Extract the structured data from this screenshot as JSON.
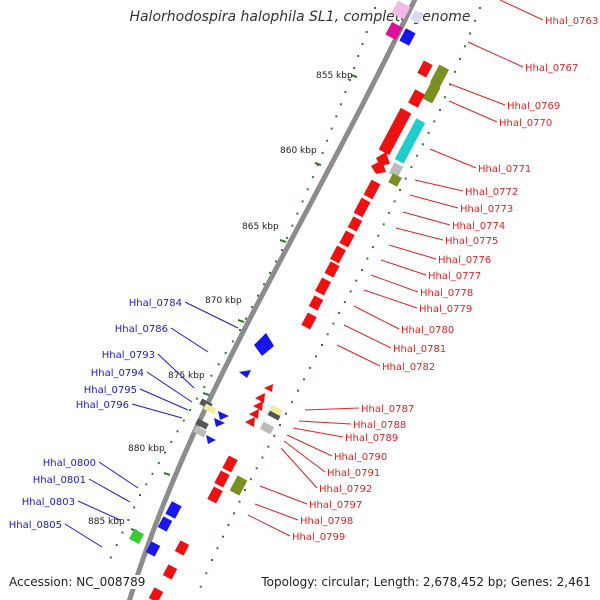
{
  "title": "Halorhodospira halophila SL1, complete genome",
  "accession": "Accession: NC_008789",
  "topology": "Topology: circular; Length: 2,678,452 bp; Genes: 2,461",
  "colors": {
    "forward_label": "#e32222",
    "reverse_label": "#1b1bd0",
    "backbone": "#8c8c8c",
    "tick": "#2f7f2f"
  },
  "ticks": [
    "855 kbp",
    "860 kbp",
    "865 kbp",
    "870 kbp",
    "875 kbp",
    "880 kbp",
    "885 kbp"
  ],
  "forward_labels": [
    "Hhal_0763",
    "Hhal_0767",
    "Hhal_0769",
    "Hhal_0770",
    "Hhal_0771",
    "Hhal_0772",
    "Hhal_0773",
    "Hhal_0774",
    "Hhal_0775",
    "Hhal_0776",
    "Hhal_0777",
    "Hhal_0778",
    "Hhal_0779",
    "Hhal_0780",
    "Hhal_0781",
    "Hhal_0782",
    "Hhal_0787",
    "Hhal_0788",
    "Hhal_0789",
    "Hhal_0790",
    "Hhal_0791",
    "Hhal_0792",
    "Hhal_0797",
    "Hhal_0798",
    "Hhal_0799"
  ],
  "reverse_labels": [
    "Hhal_0784",
    "Hhal_0786",
    "Hhal_0793",
    "Hhal_0794",
    "Hhal_0795",
    "Hhal_0796",
    "Hhal_0800",
    "Hhal_0801",
    "Hhal_0803",
    "Hhal_0805"
  ]
}
